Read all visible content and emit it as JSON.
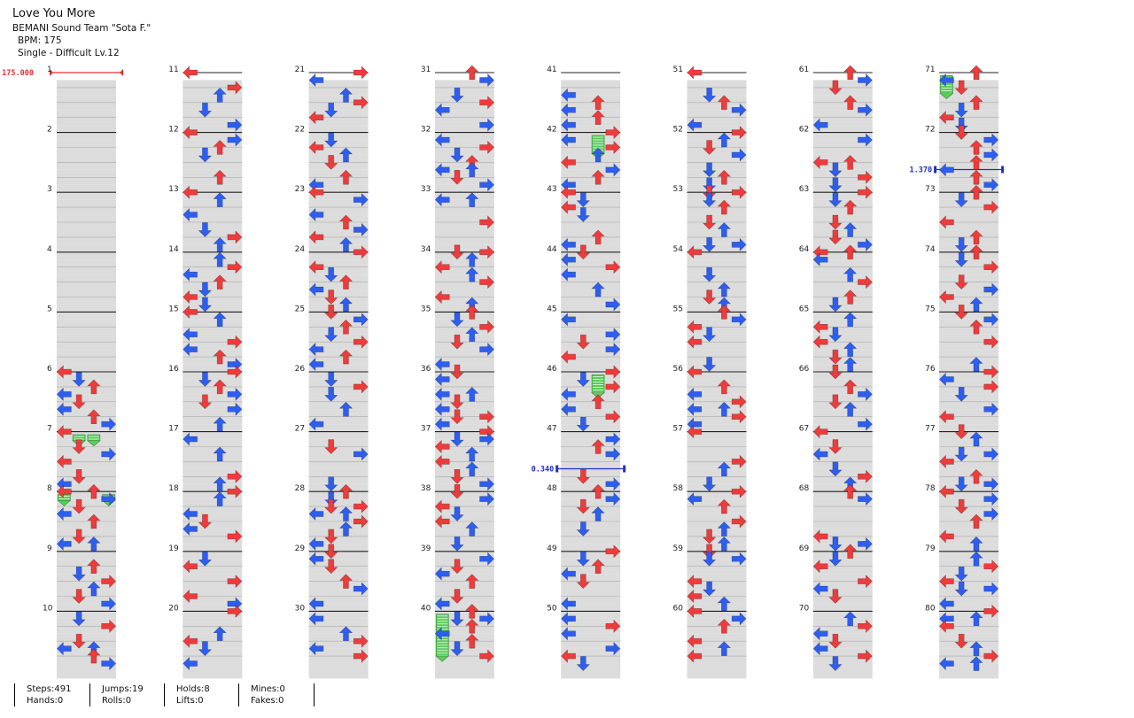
{
  "song": {
    "title": "Love You More",
    "artist": "BEMANI Sound Team \"Sota F.\"",
    "bpm_label": "BPM: 175",
    "difficulty_label": "Single - Difficult Lv.12"
  },
  "chart": {
    "measure_count": 80,
    "measures_per_column": 10,
    "lane_order": [
      "left",
      "down",
      "up",
      "right"
    ],
    "colors": {
      "quarter_note": "#ee3b3b",
      "eighth_note": "#2e5ef0",
      "freeze": "#5cc95c",
      "bpm_marker": "#e03030",
      "stop_marker": "#2030c0",
      "band": "#dcdcdc"
    },
    "bpm_changes": [
      {
        "measure": 1,
        "value": "175.000"
      }
    ],
    "stops": [
      {
        "measure": 47,
        "value": "0.340"
      },
      {
        "measure": 72,
        "value": "1.370"
      }
    ],
    "freezes": [
      {
        "lane": "down",
        "measure": 7,
        "length": 0.1
      },
      {
        "lane": "up",
        "measure": 7,
        "length": 0.1
      },
      {
        "lane": "left",
        "measure": 8,
        "length": 0.1
      },
      {
        "lane": "right",
        "measure": 8,
        "length": 0.1
      },
      {
        "lane": "left",
        "measure": 40,
        "length": 0.7
      },
      {
        "lane": "up",
        "measure": 42,
        "length": 0.3
      },
      {
        "lane": "up",
        "measure": 46,
        "length": 0.3
      },
      {
        "lane": "left",
        "measure": 71,
        "length": 0.3
      }
    ]
  },
  "stats": {
    "steps": "Steps:491",
    "jumps": "Jumps:19",
    "holds": "Holds:8",
    "mines": "Mines:0",
    "hands": "Hands:0",
    "rolls": "Rolls:0",
    "lifts": "Lifts:0",
    "fakes": "Fakes:0"
  }
}
